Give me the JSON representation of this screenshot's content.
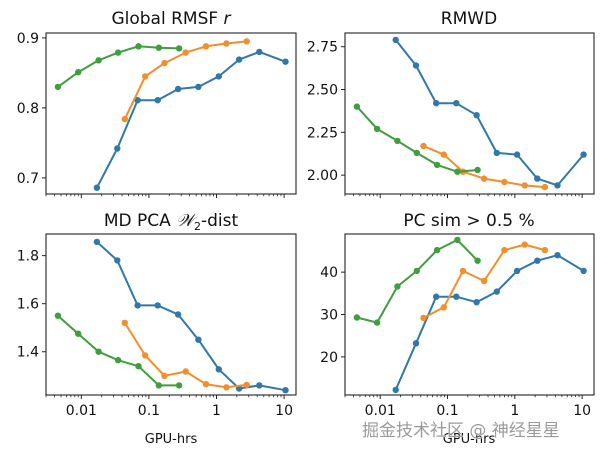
{
  "chart_data": [
    {
      "type": "line",
      "title": "Global RMSF r",
      "title_main": "Global RMSF ",
      "title_italic": "r",
      "xlabel": "",
      "xscale": "log",
      "xlim": [
        0.003,
        15
      ],
      "ylim": [
        0.677,
        0.907
      ],
      "yticks": [
        0.7,
        0.8,
        0.9
      ],
      "ytick_labels": [
        "0.7",
        "0.8",
        "0.9"
      ],
      "xticks": [
        0.01,
        0.1,
        1,
        10
      ],
      "xtick_labels_shown": false,
      "grid": false,
      "series": [
        {
          "name": "blue",
          "color": "#2f78a8",
          "x": [
            0.017,
            0.034,
            0.068,
            0.135,
            0.27,
            0.54,
            1.08,
            2.16,
            4.3,
            10.5
          ],
          "y": [
            0.686,
            0.742,
            0.811,
            0.811,
            0.827,
            0.83,
            0.845,
            0.869,
            0.88,
            0.866
          ]
        },
        {
          "name": "orange",
          "color": "#f28e2b",
          "x": [
            0.044,
            0.088,
            0.17,
            0.35,
            0.7,
            1.4,
            2.8
          ],
          "y": [
            0.784,
            0.845,
            0.864,
            0.879,
            0.888,
            0.892,
            0.895
          ]
        },
        {
          "name": "green",
          "color": "#3f9e3f",
          "x": [
            0.0045,
            0.009,
            0.018,
            0.035,
            0.07,
            0.14,
            0.28
          ],
          "y": [
            0.83,
            0.851,
            0.868,
            0.879,
            0.888,
            0.886,
            0.885
          ]
        }
      ]
    },
    {
      "type": "line",
      "title": "RMWD",
      "xlabel": "",
      "xscale": "log",
      "xlim": [
        0.003,
        15
      ],
      "ylim": [
        1.89,
        2.83
      ],
      "yticks": [
        2.0,
        2.25,
        2.5,
        2.75
      ],
      "ytick_labels": [
        "2.00",
        "2.25",
        "2.50",
        "2.75"
      ],
      "xticks": [
        0.01,
        0.1,
        1,
        10
      ],
      "xtick_labels_shown": false,
      "grid": false,
      "series": [
        {
          "name": "blue",
          "color": "#2f78a8",
          "x": [
            0.017,
            0.034,
            0.068,
            0.135,
            0.27,
            0.54,
            1.08,
            2.16,
            4.3,
            10.5
          ],
          "y": [
            2.79,
            2.64,
            2.42,
            2.42,
            2.35,
            2.13,
            2.12,
            1.98,
            1.94,
            2.12
          ]
        },
        {
          "name": "orange",
          "color": "#f28e2b",
          "x": [
            0.044,
            0.088,
            0.17,
            0.35,
            0.7,
            1.4,
            2.8
          ],
          "y": [
            2.17,
            2.12,
            2.02,
            1.98,
            1.96,
            1.94,
            1.93
          ]
        },
        {
          "name": "green",
          "color": "#3f9e3f",
          "x": [
            0.0045,
            0.009,
            0.018,
            0.035,
            0.07,
            0.14,
            0.28
          ],
          "y": [
            2.4,
            2.27,
            2.2,
            2.13,
            2.06,
            2.02,
            2.03
          ]
        }
      ]
    },
    {
      "type": "line",
      "title": "MD PCA W2-dist",
      "title_main": "MD PCA ",
      "title_script": "𝒲",
      "title_sub": "2",
      "title_tail": "-dist",
      "xlabel": "GPU-hrs",
      "xscale": "log",
      "xlim": [
        0.003,
        15
      ],
      "ylim": [
        1.22,
        1.89
      ],
      "yticks": [
        1.4,
        1.6,
        1.8
      ],
      "ytick_labels": [
        "1.4",
        "1.6",
        "1.8"
      ],
      "xticks": [
        0.01,
        0.1,
        1,
        10
      ],
      "xtick_labels": [
        "0.01",
        "0.1",
        "1",
        "10"
      ],
      "xtick_labels_shown": true,
      "grid": false,
      "series": [
        {
          "name": "blue",
          "color": "#2f78a8",
          "x": [
            0.017,
            0.034,
            0.068,
            0.135,
            0.27,
            0.54,
            1.08,
            2.16,
            4.3,
            10.5
          ],
          "y": [
            1.857,
            1.78,
            1.593,
            1.593,
            1.555,
            1.45,
            1.327,
            1.247,
            1.26,
            1.24
          ]
        },
        {
          "name": "orange",
          "color": "#f28e2b",
          "x": [
            0.044,
            0.088,
            0.17,
            0.35,
            0.7,
            1.4,
            2.8
          ],
          "y": [
            1.52,
            1.385,
            1.3,
            1.318,
            1.265,
            1.252,
            1.262
          ]
        },
        {
          "name": "green",
          "color": "#3f9e3f",
          "x": [
            0.0045,
            0.009,
            0.018,
            0.035,
            0.07,
            0.14,
            0.28
          ],
          "y": [
            1.55,
            1.475,
            1.4,
            1.365,
            1.34,
            1.26,
            1.26
          ]
        }
      ]
    },
    {
      "type": "line",
      "title": "PC sim > 0.5 %",
      "xlabel": "GPU-hrs",
      "xscale": "log",
      "xlim": [
        0.003,
        15
      ],
      "ylim": [
        11,
        49
      ],
      "yticks": [
        20,
        30,
        40
      ],
      "ytick_labels": [
        "20",
        "30",
        "40"
      ],
      "xticks": [
        0.01,
        0.1,
        1,
        10
      ],
      "xtick_labels": [
        "0.01",
        "0.1",
        "1",
        "10"
      ],
      "xtick_labels_shown": true,
      "grid": false,
      "series": [
        {
          "name": "blue",
          "color": "#2f78a8",
          "x": [
            0.017,
            0.034,
            0.068,
            0.135,
            0.27,
            0.54,
            1.08,
            2.16,
            4.3,
            10.5
          ],
          "y": [
            12.2,
            23.2,
            34.2,
            34.2,
            32.9,
            35.4,
            40.3,
            42.7,
            44,
            40.3
          ]
        },
        {
          "name": "orange",
          "color": "#f28e2b",
          "x": [
            0.044,
            0.088,
            0.17,
            0.35,
            0.7,
            1.4,
            2.8
          ],
          "y": [
            29.2,
            31.7,
            40.3,
            37.9,
            45.2,
            46.5,
            45.2
          ]
        },
        {
          "name": "green",
          "color": "#3f9e3f",
          "x": [
            0.0045,
            0.009,
            0.018,
            0.035,
            0.07,
            0.14,
            0.28
          ],
          "y": [
            29.3,
            28.1,
            36.6,
            40.3,
            45.2,
            47.6,
            42.7
          ]
        }
      ]
    }
  ],
  "watermark": "掘金技术社区 @ 神经星星"
}
